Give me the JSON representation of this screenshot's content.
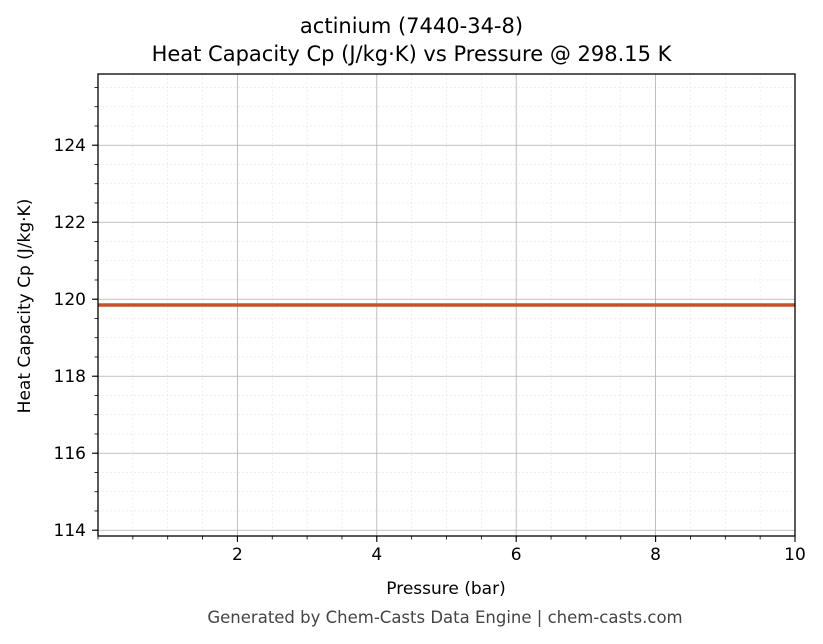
{
  "chart_data": {
    "type": "line",
    "title": "actinium (7440-34-8)",
    "subtitle": "Heat Capacity Cp (J/kg·K) vs Pressure @ 298.15 K",
    "xlabel": "Pressure (bar)",
    "ylabel": "Heat Capacity Cp (J/kg·K)",
    "xlim": [
      0.0,
      10.0
    ],
    "ylim": [
      113.85,
      125.85
    ],
    "x_ticks": [
      2,
      4,
      6,
      8,
      10
    ],
    "y_ticks": [
      114,
      116,
      118,
      120,
      122,
      124
    ],
    "grid": true,
    "series": [
      {
        "x": [
          0.0,
          10.0
        ],
        "y": [
          119.85,
          119.85
        ],
        "color": "#c8502a"
      }
    ]
  },
  "footer": "Generated by Chem-Casts Data Engine | chem-casts.com"
}
